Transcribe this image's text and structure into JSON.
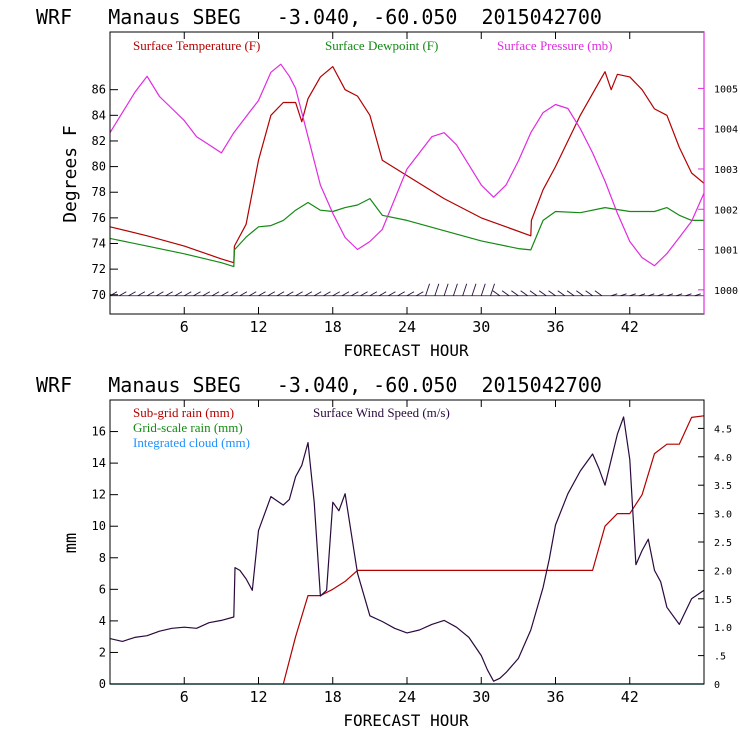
{
  "colors": {
    "temp": "#b30000",
    "dew": "#138a13",
    "pres": "#e02ce0",
    "subgrid": "#b30000",
    "gridscale": "#138a13",
    "cloud": "#1e90ff",
    "wind": "#2a0a3d",
    "barb": "#2a0a3d",
    "axis": "#000000"
  },
  "panels": [
    {
      "title": "WRF   Manaus SBEG   -3.040, -60.050  2015042700",
      "xlabel": "FORECAST HOUR",
      "ylabel": "Degrees F",
      "xticks": [
        "6",
        "12",
        "18",
        "24",
        "30",
        "36",
        "42"
      ],
      "yticks_left": [
        "70",
        "72",
        "74",
        "76",
        "78",
        "80",
        "82",
        "84",
        "86"
      ],
      "yticks_right": [
        "1000",
        "1001",
        "1002",
        "1003",
        "1004",
        "1005"
      ],
      "legend": [
        "Surface Temperature (F)",
        "Surface Dewpoint (F)",
        "Surface Pressure (mb)"
      ]
    },
    {
      "title": "WRF   Manaus SBEG   -3.040, -60.050  2015042700",
      "xlabel": "FORECAST HOUR",
      "ylabel": "mm",
      "xticks": [
        "6",
        "12",
        "18",
        "24",
        "30",
        "36",
        "42"
      ],
      "yticks_left": [
        "0",
        "2",
        "4",
        "6",
        "8",
        "10",
        "12",
        "14",
        "16"
      ],
      "yticks_right": [
        "0",
        ".5",
        "1.0",
        "1.5",
        "2.0",
        "2.5",
        "3.0",
        "3.5",
        "4.0",
        "4.5"
      ],
      "legend": [
        "Sub-grid rain (mm)",
        "Grid-scale rain (mm)",
        "Integrated cloud (mm)",
        "Surface Wind Speed (m/s)"
      ]
    }
  ],
  "chart_data": [
    {
      "type": "line",
      "x_unit": "forecast hour",
      "xlim": [
        0,
        48
      ],
      "ylim_left": [
        68.5,
        90.5
      ],
      "ylim_right": [
        999.4,
        1006.4
      ],
      "series": [
        {
          "name": "Surface Temperature (F)",
          "axis": "left",
          "x": [
            0,
            3,
            6,
            9,
            10,
            10.05,
            11,
            12,
            13,
            14,
            15,
            15.5,
            16,
            17,
            18,
            19,
            20,
            21,
            22,
            24,
            27,
            30,
            34,
            34.05,
            35,
            36,
            38,
            40,
            40.5,
            41,
            42,
            43,
            44,
            45,
            46,
            47,
            48
          ],
          "values": [
            75.3,
            74.6,
            73.8,
            72.8,
            72.5,
            73.8,
            75.5,
            80.5,
            84.0,
            85.0,
            85.0,
            83.5,
            85.3,
            87.0,
            87.8,
            86.0,
            85.5,
            84.0,
            80.5,
            79.3,
            77.5,
            76.0,
            74.6,
            75.8,
            78.2,
            80.0,
            84.0,
            87.4,
            86.0,
            87.2,
            87.0,
            86.0,
            84.5,
            84.0,
            81.5,
            79.5,
            78.7
          ]
        },
        {
          "name": "Surface Dewpoint (F)",
          "axis": "left",
          "x": [
            0,
            3,
            6,
            9,
            10,
            10.05,
            11,
            12,
            13,
            14,
            15,
            16,
            17,
            18,
            19,
            20,
            21,
            22,
            24,
            27,
            30,
            33,
            34,
            35,
            36,
            38,
            40,
            42,
            43,
            44,
            45,
            46,
            47,
            48
          ],
          "values": [
            74.4,
            73.8,
            73.2,
            72.5,
            72.2,
            73.5,
            74.5,
            75.3,
            75.4,
            75.8,
            76.6,
            77.2,
            76.6,
            76.5,
            76.8,
            77.0,
            77.5,
            76.2,
            75.8,
            75.0,
            74.2,
            73.6,
            73.5,
            75.8,
            76.5,
            76.4,
            76.8,
            76.5,
            76.5,
            76.5,
            76.8,
            76.2,
            75.8,
            75.8
          ]
        },
        {
          "name": "Surface Pressure (mb)",
          "axis": "right",
          "x": [
            0,
            1,
            2,
            3,
            4,
            5,
            6,
            7,
            8,
            9,
            10,
            11,
            12,
            13,
            13.8,
            14.5,
            15,
            16,
            17,
            18,
            19,
            20,
            21,
            22,
            24,
            26,
            27,
            28,
            29,
            30,
            31,
            32,
            33,
            34,
            35,
            36,
            37,
            38,
            39,
            40,
            41,
            42,
            43,
            44,
            45,
            46,
            47,
            48
          ],
          "values": [
            1003.9,
            1004.4,
            1004.9,
            1005.3,
            1004.8,
            1004.5,
            1004.2,
            1003.8,
            1003.6,
            1003.4,
            1003.9,
            1004.3,
            1004.7,
            1005.4,
            1005.6,
            1005.3,
            1005.0,
            1003.8,
            1002.6,
            1001.9,
            1001.3,
            1001.0,
            1001.2,
            1001.5,
            1003.0,
            1003.8,
            1003.9,
            1003.6,
            1003.1,
            1002.6,
            1002.3,
            1002.6,
            1003.2,
            1003.9,
            1004.4,
            1004.6,
            1004.5,
            1004.0,
            1003.4,
            1002.7,
            1001.9,
            1001.2,
            1000.8,
            1000.6,
            1000.9,
            1001.3,
            1001.7,
            1002.4
          ]
        }
      ]
    },
    {
      "type": "line",
      "x_unit": "forecast hour",
      "xlim": [
        0,
        48
      ],
      "ylim_left": [
        0,
        18
      ],
      "ylim_right": [
        0,
        5
      ],
      "series": [
        {
          "name": "Sub-grid rain (mm)",
          "axis": "left",
          "x": [
            14,
            15,
            16,
            17,
            18,
            19,
            20,
            24,
            28,
            32,
            36,
            38,
            39,
            40,
            41,
            42,
            43,
            44,
            45,
            46,
            47,
            48
          ],
          "values": [
            0,
            3.0,
            5.6,
            5.6,
            6.0,
            6.5,
            7.2,
            7.2,
            7.2,
            7.2,
            7.2,
            7.2,
            7.2,
            10.0,
            10.8,
            10.8,
            12.0,
            14.6,
            15.2,
            15.2,
            16.9,
            17.0
          ]
        },
        {
          "name": "Grid-scale rain (mm)",
          "axis": "left",
          "x": [
            0,
            48
          ],
          "values": [
            0,
            0
          ]
        },
        {
          "name": "Integrated cloud (mm)",
          "axis": "left",
          "x": [
            0,
            48
          ],
          "values": [
            0,
            0
          ]
        },
        {
          "name": "Surface Wind Speed (m/s)",
          "axis": "right",
          "x": [
            0,
            1,
            2,
            3,
            4,
            5,
            6,
            7,
            8,
            9,
            10,
            10.1,
            10.5,
            11,
            11.5,
            12,
            12.5,
            13,
            14,
            14.5,
            15,
            15.5,
            16,
            16.5,
            17,
            17.5,
            18,
            18.5,
            19,
            20,
            21,
            22,
            23,
            24,
            25,
            26,
            27,
            28,
            29,
            30,
            30.5,
            31,
            31.5,
            32,
            33,
            34,
            35,
            35.5,
            36,
            37,
            38,
            39,
            39.5,
            40,
            41,
            41.5,
            42,
            42.5,
            43,
            43.5,
            44,
            44.5,
            45,
            46,
            47,
            48
          ],
          "values": [
            0.8,
            0.75,
            0.82,
            0.85,
            0.93,
            0.98,
            1.0,
            0.98,
            1.08,
            1.12,
            1.18,
            2.05,
            2.0,
            1.85,
            1.65,
            2.7,
            3.0,
            3.3,
            3.15,
            3.25,
            3.65,
            3.85,
            4.25,
            3.2,
            1.55,
            1.65,
            3.2,
            3.05,
            3.35,
            1.95,
            1.2,
            1.1,
            0.98,
            0.9,
            0.95,
            1.05,
            1.12,
            1.0,
            0.82,
            0.5,
            0.25,
            0.05,
            0.1,
            0.2,
            0.45,
            0.95,
            1.7,
            2.2,
            2.8,
            3.35,
            3.75,
            4.05,
            3.8,
            3.5,
            4.4,
            4.7,
            3.95,
            2.1,
            2.35,
            2.55,
            2.0,
            1.8,
            1.35,
            1.05,
            1.5,
            1.65
          ]
        }
      ]
    }
  ]
}
